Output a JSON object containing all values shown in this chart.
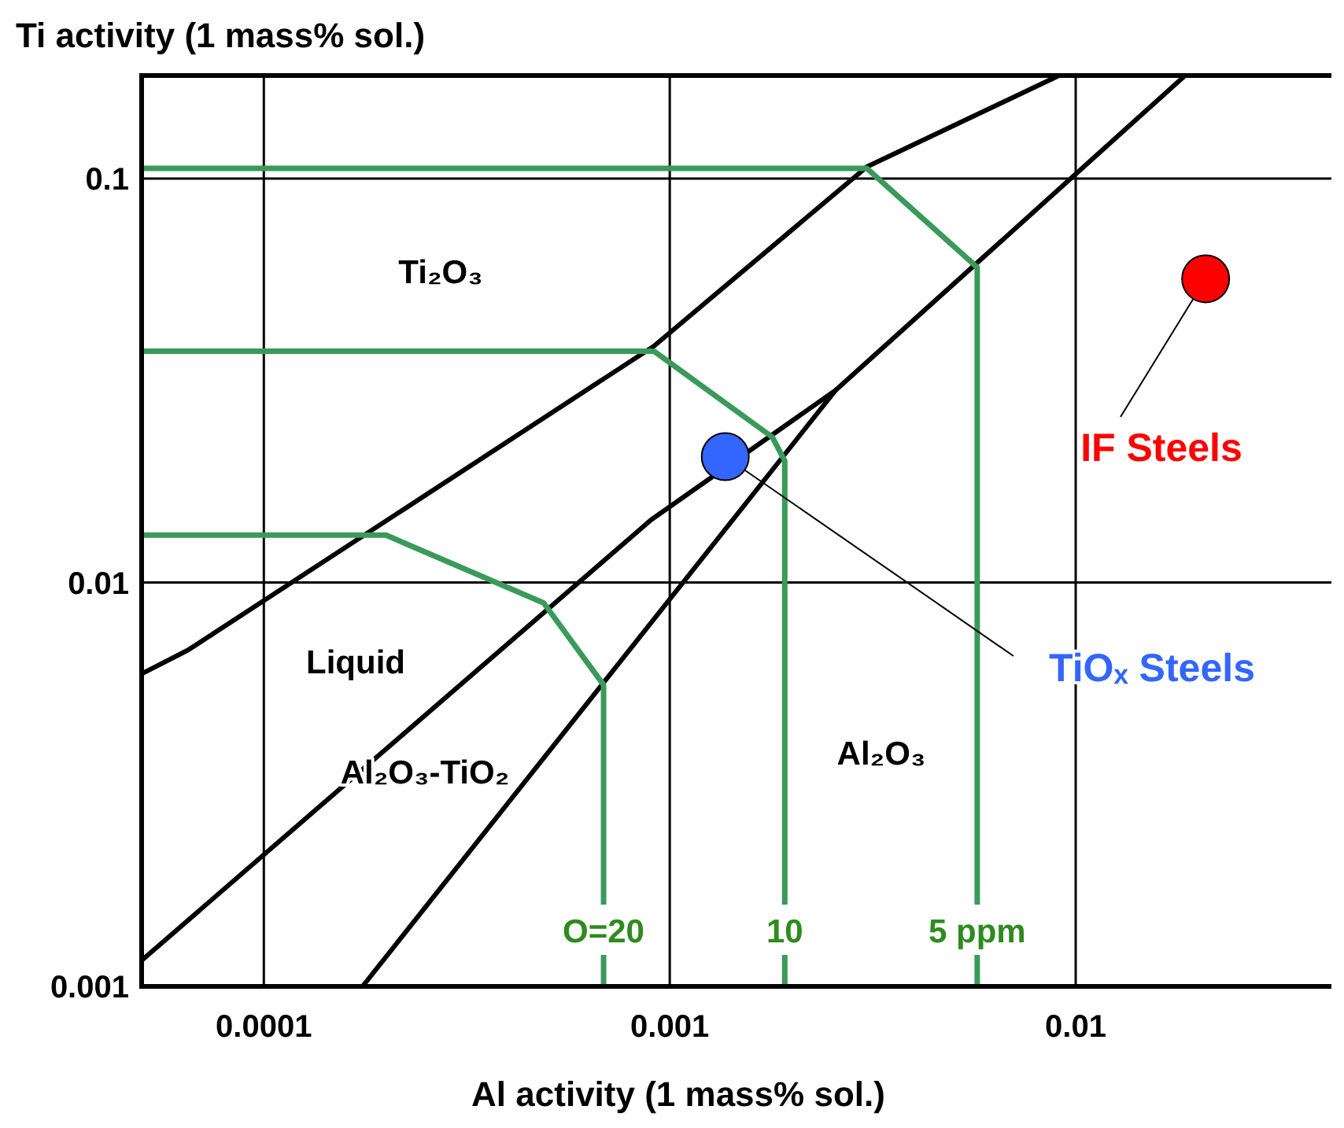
{
  "chart_data": {
    "type": "line",
    "xlabel": "Al activity (1 mass% sol.)",
    "ylabel": "Ti activity (1 mass% sol.)",
    "log": "xy",
    "grid": true,
    "xlim": [
      5e-05,
      0.045
    ],
    "ylim": [
      0.001,
      0.18
    ],
    "xticks": [
      0.0001,
      0.001,
      0.01
    ],
    "yticks": [
      0.001,
      0.01,
      0.1
    ],
    "series": [
      {
        "color": "#000000",
        "x": [
          5e-05,
          6.5e-05,
          9.8e-05,
          0.000914,
          0.00306,
          0.0091
        ],
        "values": [
          0.00594,
          0.0068,
          0.0089,
          0.0385,
          0.107,
          0.18
        ]
      },
      {
        "color": "#000000",
        "x": [
          5e-05,
          0.0009,
          0.00256,
          0.0186
        ],
        "values": [
          0.00116,
          0.0143,
          0.0299,
          0.18
        ]
      },
      {
        "color": "#000000",
        "x": [
          0.000175,
          0.00256
        ],
        "values": [
          0.001,
          0.0299
        ]
      },
      {
        "name": "O=20",
        "color": "#3a9a5a",
        "x": [
          5e-05,
          0.0002,
          0.000489,
          0.000687,
          0.000687
        ],
        "values": [
          0.0131,
          0.0131,
          0.0089,
          0.00558,
          0.001
        ]
      },
      {
        "name": "10",
        "color": "#3a9a5a",
        "x": [
          5e-05,
          0.000914,
          0.00179,
          0.00192,
          0.00192
        ],
        "values": [
          0.0374,
          0.0374,
          0.0229,
          0.02,
          0.001
        ]
      },
      {
        "name": "5 ppm",
        "color": "#3a9a5a",
        "x": [
          5e-05,
          0.00306,
          0.00572,
          0.00572
        ],
        "values": [
          0.106,
          0.106,
          0.0603,
          0.001
        ]
      },
      {
        "type": "scatter",
        "color": "#ff0000",
        "x": [
          0.0209
        ],
        "values": [
          0.0565
        ]
      },
      {
        "type": "scatter",
        "color": "#3366ff",
        "x": [
          0.00137
        ],
        "values": [
          0.0205
        ]
      }
    ],
    "annotations": [
      "Ti₂O₃",
      "Liquid",
      "Al₂O₃-TiO₂",
      "Al₂O₃",
      {
        "text": "IF Steels",
        "x": 0.0209,
        "y": 0.0565
      },
      {
        "text": "TiOₓ Steels",
        "x": 0.00137,
        "y": 0.0205
      }
    ]
  }
}
